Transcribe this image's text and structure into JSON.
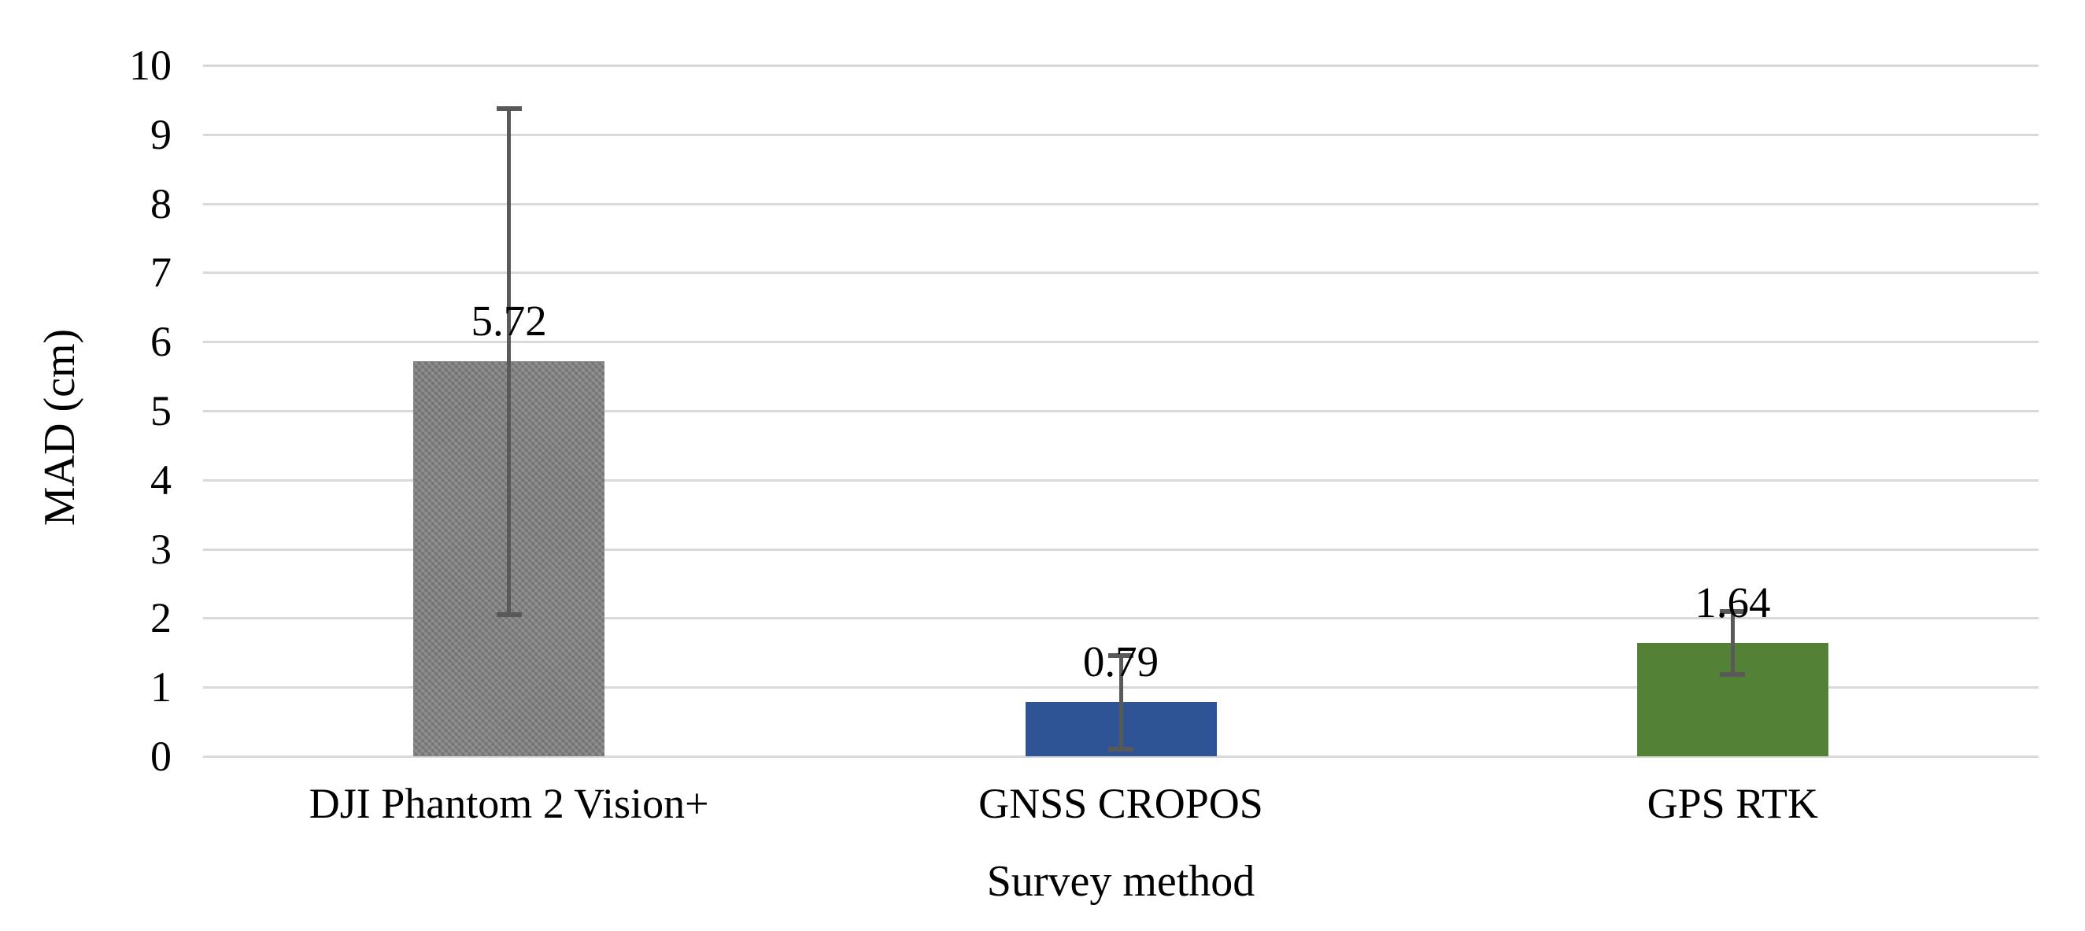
{
  "chart_data": {
    "type": "bar",
    "title": "",
    "xlabel": "Survey method",
    "ylabel": "MAD (cm)",
    "ylim": [
      0,
      10
    ],
    "ytick_step": 1,
    "ytick_labels": [
      "0",
      "1",
      "2",
      "3",
      "4",
      "5",
      "6",
      "7",
      "8",
      "9",
      "10"
    ],
    "grid": true,
    "legend": false,
    "categories": [
      "DJI Phantom 2 Vision+",
      "GNSS CROPOS",
      "GPS RTK"
    ],
    "values": [
      5.72,
      0.79,
      1.64
    ],
    "data_labels": [
      "5.72",
      "0.79",
      "1.64"
    ],
    "error_bars": [
      {
        "plus": 3.65,
        "minus": 3.67
      },
      {
        "plus": 0.67,
        "minus": 0.69
      },
      {
        "plus": 0.45,
        "minus": 0.45
      }
    ],
    "bar_colors": [
      "#7F7F7F",
      "#2F5496",
      "#538135"
    ],
    "bar_patterns": [
      "weave",
      "solid",
      "solid"
    ],
    "error_bar_color": "#595959",
    "gridline_color": "#D9D9D9",
    "text_color": "#000000",
    "background_color": "#FFFFFF"
  }
}
